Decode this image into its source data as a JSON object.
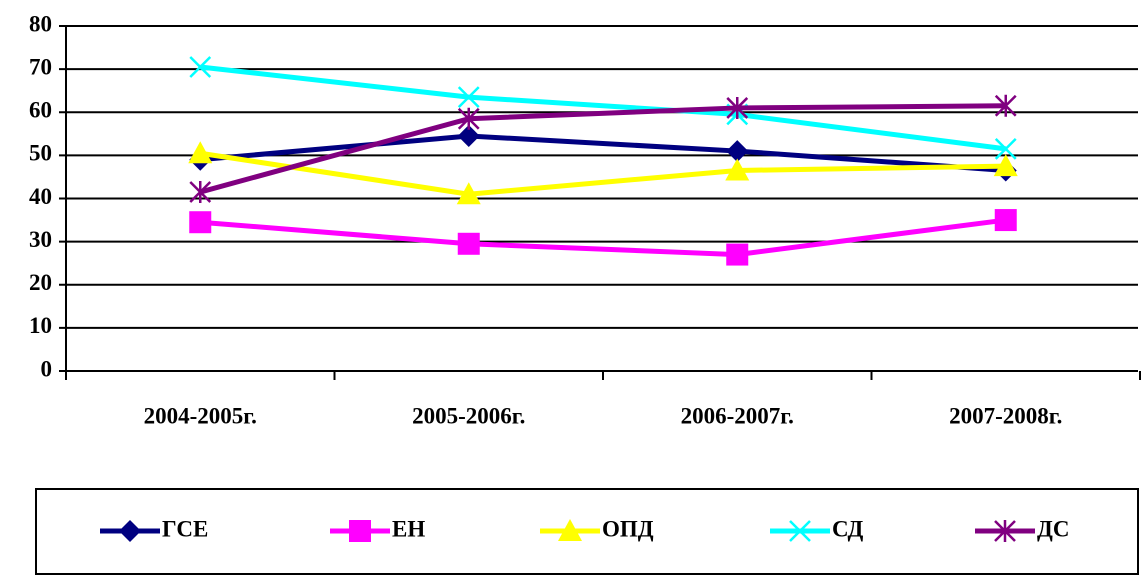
{
  "chart_data": {
    "type": "line",
    "categories": [
      "2004-2005г.",
      "2005-2006г.",
      "2006-2007г.",
      "2007-2008г."
    ],
    "series": [
      {
        "name": "ГСЕ",
        "color": "#000080",
        "marker": "diamond",
        "values": [
          49,
          54.5,
          51,
          46.5
        ]
      },
      {
        "name": "ЕН",
        "color": "#ff00ff",
        "marker": "square",
        "values": [
          34.5,
          29.5,
          27,
          35
        ]
      },
      {
        "name": "ОПД",
        "color": "#ffff00",
        "marker": "triangle",
        "values": [
          50.5,
          41,
          46.5,
          47.5
        ]
      },
      {
        "name": "СД",
        "color": "#00ffff",
        "marker": "x",
        "values": [
          70.5,
          63.5,
          59.5,
          51.5
        ]
      },
      {
        "name": "ДС",
        "color": "#800080",
        "marker": "star",
        "values": [
          41.5,
          58.5,
          61,
          61.5
        ]
      }
    ],
    "ylim": [
      0,
      80
    ],
    "yticks": [
      0,
      10,
      20,
      30,
      40,
      50,
      60,
      70,
      80
    ],
    "grid": true,
    "legend": "bottom"
  }
}
